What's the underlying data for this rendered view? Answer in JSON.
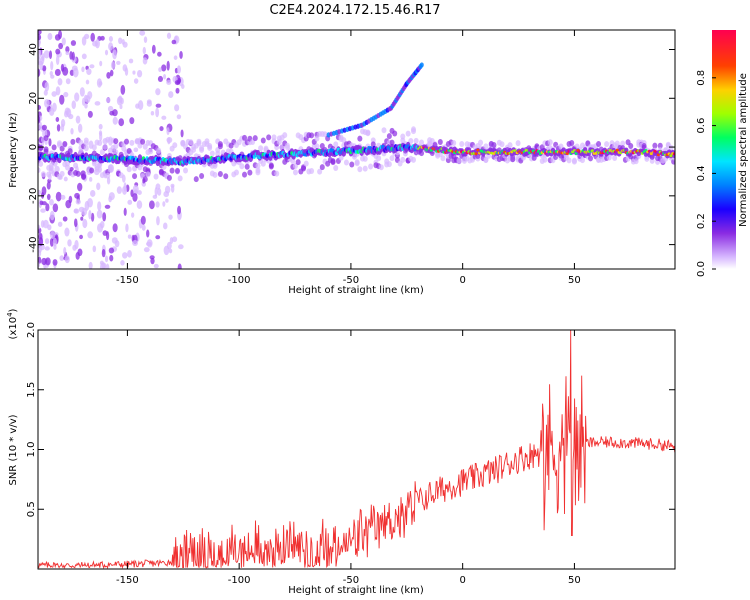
{
  "title": "C2E4.2024.172.15.46.R17",
  "chart_data": [
    {
      "type": "heatmap",
      "xlabel": "Height of straight line (km)",
      "ylabel": "Frequency (Hz)",
      "xlim": [
        -190,
        95
      ],
      "ylim": [
        -50,
        48
      ],
      "xticks": [
        -150,
        -100,
        -50,
        0,
        50
      ],
      "yticks": [
        -40,
        -20,
        0,
        20,
        40
      ],
      "colorbar": {
        "label": "Normalized spectral amplitude",
        "range": [
          0.0,
          1.0
        ],
        "ticks": [
          0.0,
          0.2,
          0.4,
          0.6,
          0.8
        ],
        "colormap": [
          "#ffffff",
          "#d7b8ff",
          "#8a2be2",
          "#1a00ff",
          "#0080ff",
          "#00e5ff",
          "#00ff60",
          "#a0ff00",
          "#ffd000",
          "#ff4000",
          "#ff0050"
        ]
      },
      "main_trace": {
        "description_points": [
          {
            "x": -190,
            "y": -4
          },
          {
            "x": -150,
            "y": -5
          },
          {
            "x": -125,
            "y": -6
          },
          {
            "x": -100,
            "y": -4
          },
          {
            "x": -80,
            "y": -3
          },
          {
            "x": -60,
            "y": -2
          },
          {
            "x": -40,
            "y": -1
          },
          {
            "x": -25,
            "y": 0
          },
          {
            "x": -15,
            "y": -1
          },
          {
            "x": 0,
            "y": -2
          },
          {
            "x": 25,
            "y": -2
          },
          {
            "x": 50,
            "y": -2
          },
          {
            "x": 80,
            "y": -2
          },
          {
            "x": 95,
            "y": -3
          }
        ],
        "branch_points": [
          {
            "x": -60,
            "y": 5
          },
          {
            "x": -45,
            "y": 9
          },
          {
            "x": -32,
            "y": 16
          },
          {
            "x": -25,
            "y": 26
          },
          {
            "x": -18,
            "y": 34
          }
        ]
      }
    },
    {
      "type": "line",
      "xlabel": "Height of straight line (km)",
      "ylabel": "SNR (10 * v/v)",
      "multiplier": "(x10",
      "multiplier_exp": "4",
      "multiplier_close": ")",
      "xlim": [
        -190,
        95
      ],
      "ylim": [
        0,
        2.0
      ],
      "xticks": [
        -150,
        -100,
        -50,
        0,
        50
      ],
      "yticks": [
        0.5,
        1.0,
        1.5,
        2.0
      ],
      "ytick_labels": [
        "0.5",
        "1.0",
        "1.5",
        "2.0"
      ],
      "color": "#f03030",
      "series": [
        {
          "values_x": [
            -190,
            -170,
            -150,
            -135,
            -125,
            -110,
            -100,
            -90,
            -80,
            -75,
            -70,
            -60,
            -55,
            -50,
            -45,
            -40,
            -35,
            -30,
            -25,
            -20,
            -15,
            -10,
            -5,
            0,
            5,
            10,
            15,
            20,
            25,
            30,
            35,
            40,
            45,
            48,
            50,
            55,
            60,
            70,
            80,
            90,
            95
          ],
          "values_y": [
            0.03,
            0.03,
            0.04,
            0.05,
            0.07,
            0.12,
            0.16,
            0.18,
            0.2,
            0.22,
            0.15,
            0.2,
            0.18,
            0.22,
            0.28,
            0.32,
            0.38,
            0.42,
            0.45,
            0.55,
            0.62,
            0.66,
            0.7,
            0.73,
            0.76,
            0.8,
            0.83,
            0.88,
            0.92,
            0.95,
            0.98,
            1.0,
            1.02,
            1.2,
            0.95,
            1.05,
            1.06,
            1.06,
            1.05,
            1.04,
            1.02
          ]
        }
      ]
    }
  ]
}
